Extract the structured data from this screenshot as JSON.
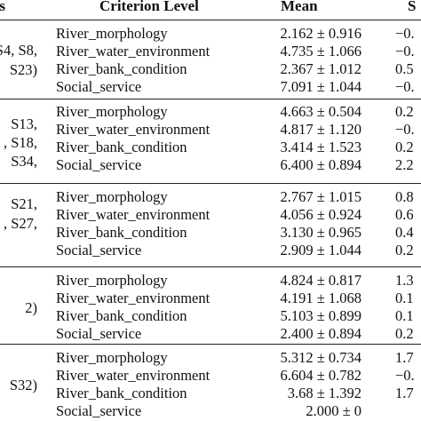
{
  "header": {
    "sites": "s",
    "criterion": "Criterion Level",
    "mean": "Mean",
    "last": "S"
  },
  "groups": [
    {
      "sites": [
        "S4, S8,",
        "S23)"
      ],
      "rows": [
        {
          "criterion": "River_morphology",
          "mean": "2.162 ± 0.916",
          "last": "−0."
        },
        {
          "criterion": "River_water_environment",
          "mean": "4.735 ± 1.066",
          "last": "−0."
        },
        {
          "criterion": "River_bank_condition",
          "mean": "2.367 ± 1.012",
          "last": "0.5"
        },
        {
          "criterion": "Social_service",
          "mean": "7.091 ± 1.044",
          "last": "−0."
        }
      ]
    },
    {
      "sites": [
        "S13,",
        ", S18,",
        "S34,"
      ],
      "rows": [
        {
          "criterion": "River_morphology",
          "mean": "4.663 ± 0.504",
          "last": "0.2"
        },
        {
          "criterion": "River_water_environment",
          "mean": "4.817 ± 1.120",
          "last": "−0."
        },
        {
          "criterion": "River_bank_condition",
          "mean": "3.414 ± 1.523",
          "last": "0.2"
        },
        {
          "criterion": "Social_service",
          "mean": "6.400 ± 0.894",
          "last": "2.2"
        }
      ]
    },
    {
      "sites": [
        "S21,",
        ", S27,"
      ],
      "rows": [
        {
          "criterion": "River_morphology",
          "mean": "2.767 ± 1.015",
          "last": "0.8"
        },
        {
          "criterion": "River_water_environment",
          "mean": "4.056 ± 0.924",
          "last": "0.6"
        },
        {
          "criterion": "River_bank_condition",
          "mean": "3.130 ± 0.965",
          "last": "0.4"
        },
        {
          "criterion": "Social_service",
          "mean": "2.909 ± 1.044",
          "last": "0.2"
        }
      ]
    },
    {
      "sites": [
        "2)"
      ],
      "rows": [
        {
          "criterion": "River_morphology",
          "mean": "4.824 ± 0.817",
          "last": "1.3"
        },
        {
          "criterion": "River_water_environment",
          "mean": "4.191 ± 1.068",
          "last": "0.1"
        },
        {
          "criterion": "River_bank_condition",
          "mean": "5.103 ± 0.899",
          "last": "0.1"
        },
        {
          "criterion": "Social_service",
          "mean": "2.400 ± 0.894",
          "last": "0.2"
        }
      ]
    },
    {
      "sites": [
        "S32)"
      ],
      "rows": [
        {
          "criterion": "River_morphology",
          "mean": "5.312 ± 0.734",
          "last": "1.7"
        },
        {
          "criterion": "River_water_environment",
          "mean": "6.604 ± 0.782",
          "last": "−0."
        },
        {
          "criterion": "River_bank_condition",
          "mean": "3.68 ± 1.392",
          "last": "1.7"
        },
        {
          "criterion": "Social_service",
          "mean": "2.000 ± 0",
          "last": ""
        }
      ]
    }
  ]
}
